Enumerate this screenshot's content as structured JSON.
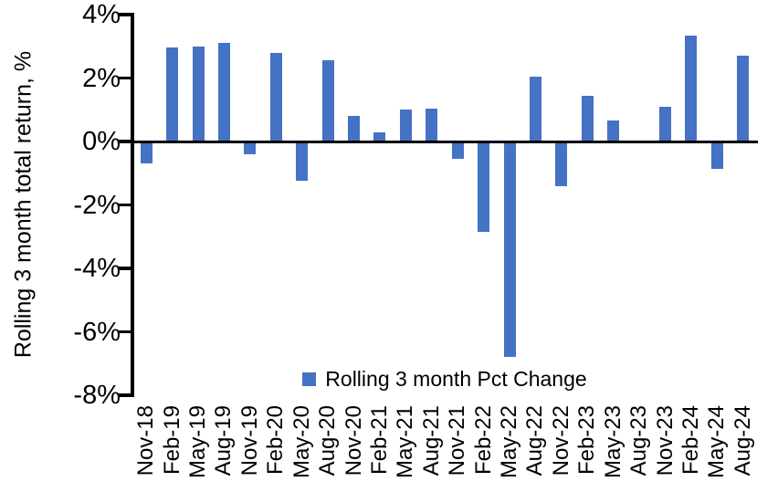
{
  "chart_data": {
    "type": "bar",
    "title": "",
    "xlabel": "",
    "ylabel": "Rolling 3 month total return, %",
    "ylim": [
      -8,
      4
    ],
    "yticks": [
      4,
      2,
      0,
      -2,
      -4,
      -6,
      -8
    ],
    "ytick_labels": [
      "4%",
      "2%",
      "0%",
      "-2%",
      "-4%",
      "-6%",
      "-8%"
    ],
    "grid": false,
    "legend_position": "bottom-center",
    "bar_color": "#4472C4",
    "axis_color": "#000000",
    "text_color": "#000000",
    "background_color": "#FFFFFF",
    "categories": [
      "Nov-18",
      "Feb-19",
      "May-19",
      "Aug-19",
      "Nov-19",
      "Feb-20",
      "May-20",
      "Aug-20",
      "Nov-20",
      "Feb-21",
      "May-21",
      "Aug-21",
      "Nov-21",
      "Feb-22",
      "May-22",
      "Aug-22",
      "Nov-22",
      "Feb-23",
      "May-23",
      "Aug-23",
      "Nov-23",
      "Feb-24",
      "May-24",
      "Aug-24"
    ],
    "series": [
      {
        "name": "Rolling 3 month Pct Change",
        "values": [
          -0.7,
          2.95,
          3.0,
          3.1,
          -0.4,
          2.8,
          -1.25,
          2.55,
          0.8,
          0.3,
          1.0,
          1.05,
          -0.55,
          -2.85,
          -6.8,
          2.05,
          -1.4,
          1.45,
          0.65,
          0.0,
          1.1,
          3.35,
          -0.85,
          2.7
        ]
      }
    ]
  }
}
